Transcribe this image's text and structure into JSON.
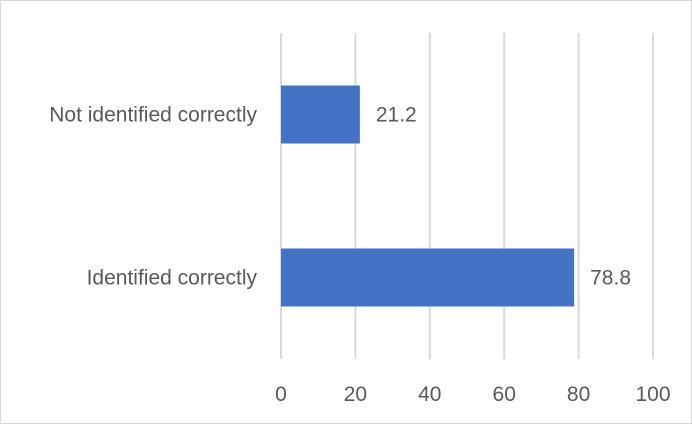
{
  "chart_data": {
    "type": "bar",
    "orientation": "horizontal",
    "title": "",
    "xlabel": "",
    "ylabel": "",
    "categories": [
      "Not identified correctly",
      "Identified correctly"
    ],
    "values": [
      21.2,
      78.8
    ],
    "data_labels": [
      "21.2",
      "78.8"
    ],
    "xlim": [
      0,
      100
    ],
    "ticks": [
      0,
      20,
      40,
      60,
      80,
      100
    ],
    "tick_labels": [
      "0",
      "20",
      "40",
      "60",
      "80",
      "100"
    ],
    "grid": "vertical",
    "legend": "none",
    "bar_color": "#4472C4",
    "grid_color": "#d9d9d9",
    "text_color": "#595959"
  }
}
